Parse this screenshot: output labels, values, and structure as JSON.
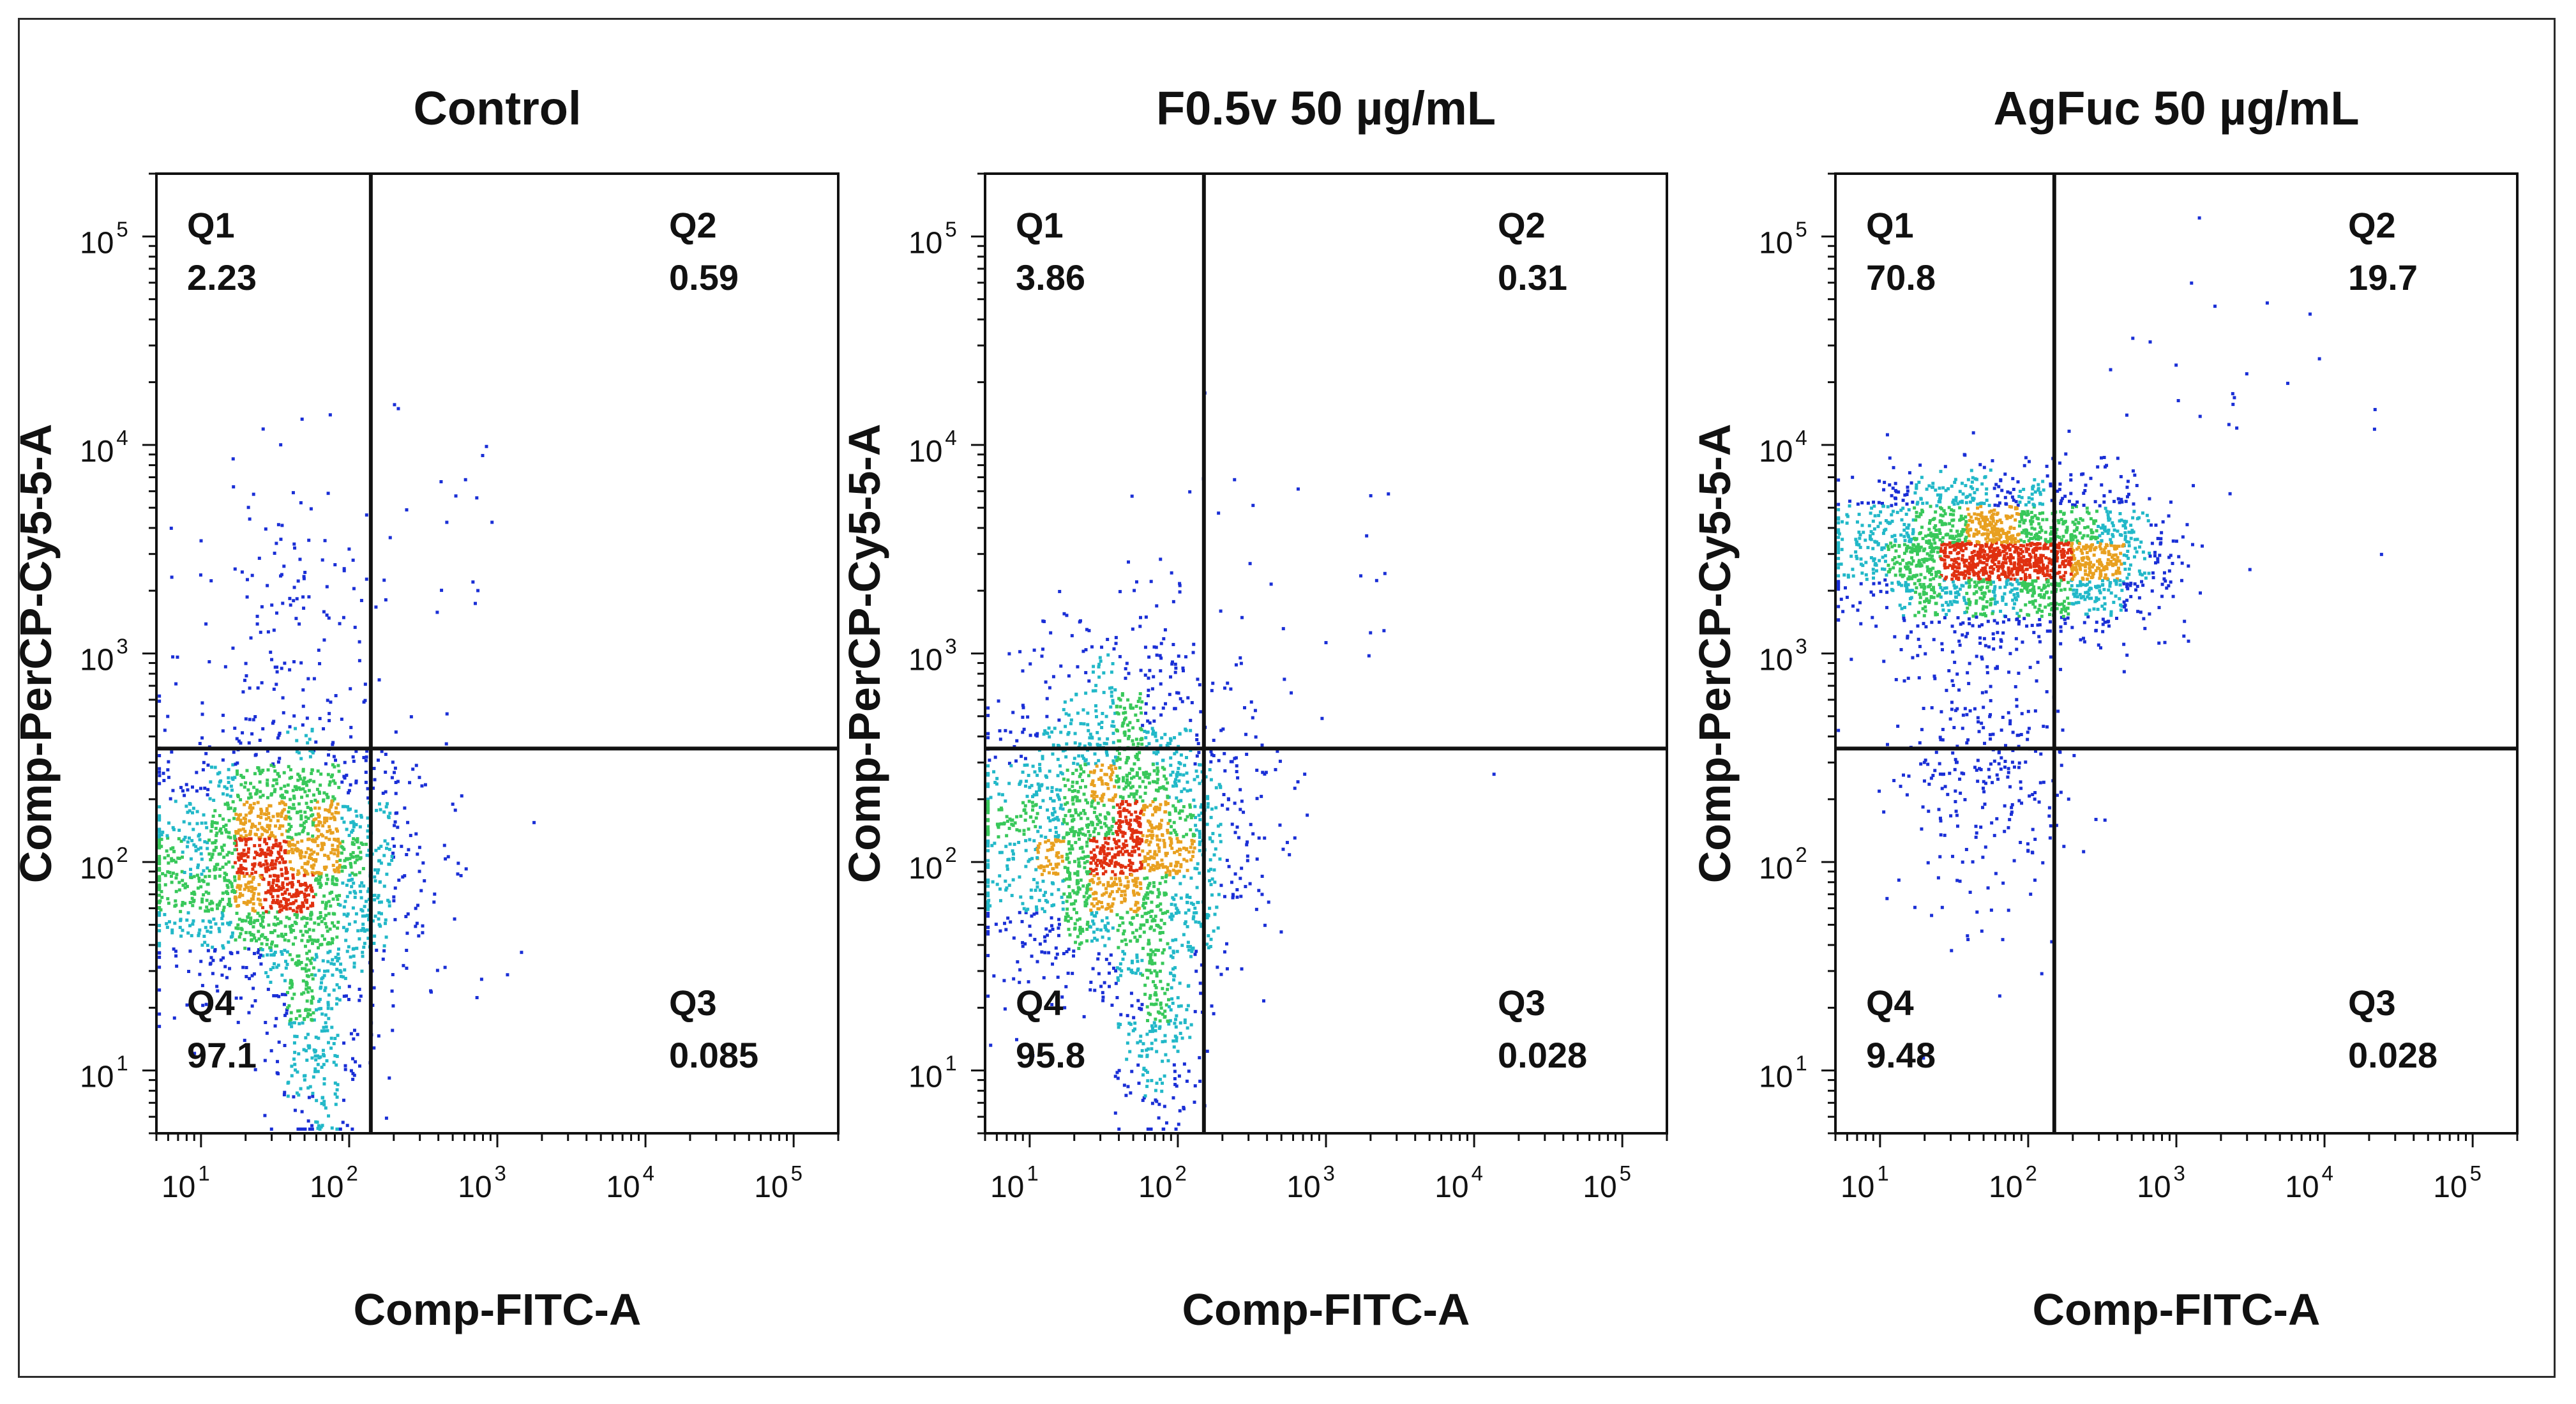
{
  "chart_data": [
    {
      "type": "scatter",
      "title": "Control",
      "xlabel": "Comp-FITC-A",
      "ylabel": "Comp-PerCP-Cy5-5-A",
      "xscale": "log",
      "yscale": "log",
      "xlim": [
        5,
        200000
      ],
      "ylim": [
        5,
        200000
      ],
      "x_ticks": [
        {
          "base": "10",
          "exp": "1"
        },
        {
          "base": "10",
          "exp": "2"
        },
        {
          "base": "10",
          "exp": "3"
        },
        {
          "base": "10",
          "exp": "4"
        },
        {
          "base": "10",
          "exp": "5"
        }
      ],
      "y_ticks": [
        {
          "base": "10",
          "exp": "1"
        },
        {
          "base": "10",
          "exp": "2"
        },
        {
          "base": "10",
          "exp": "3"
        },
        {
          "base": "10",
          "exp": "4"
        },
        {
          "base": "10",
          "exp": "5"
        }
      ],
      "gate": {
        "x": 140,
        "y": 350
      },
      "quadrants": [
        {
          "name": "Q1",
          "value": "2.23",
          "position": "top-left"
        },
        {
          "name": "Q2",
          "value": "0.59",
          "position": "top-right"
        },
        {
          "name": "Q3",
          "value": "0.085",
          "position": "bottom-right"
        },
        {
          "name": "Q4",
          "value": "97.1",
          "position": "bottom-left"
        }
      ],
      "populations": [
        {
          "x_center": 35,
          "y_center": 95,
          "x_spread": 0.45,
          "y_spread": 0.3,
          "count": 1900
        },
        {
          "x_center": 60,
          "y_center": 15,
          "x_spread": 0.15,
          "y_spread": 0.3,
          "count": 250
        },
        {
          "x_center": 40,
          "y_center": 1200,
          "x_spread": 0.35,
          "y_spread": 0.45,
          "count": 150
        },
        {
          "x_center": 400,
          "y_center": 2500,
          "x_spread": 0.35,
          "y_spread": 0.45,
          "count": 22
        }
      ]
    },
    {
      "type": "scatter",
      "title": "F0.5v 50 µg/mL",
      "xlabel": "Comp-FITC-A",
      "ylabel": "Comp-PerCP-Cy5-5-A",
      "xscale": "log",
      "yscale": "log",
      "xlim": [
        5,
        200000
      ],
      "ylim": [
        5,
        200000
      ],
      "x_ticks": [
        {
          "base": "10",
          "exp": "1"
        },
        {
          "base": "10",
          "exp": "2"
        },
        {
          "base": "10",
          "exp": "3"
        },
        {
          "base": "10",
          "exp": "4"
        },
        {
          "base": "10",
          "exp": "5"
        }
      ],
      "y_ticks": [
        {
          "base": "10",
          "exp": "1"
        },
        {
          "base": "10",
          "exp": "2"
        },
        {
          "base": "10",
          "exp": "3"
        },
        {
          "base": "10",
          "exp": "4"
        },
        {
          "base": "10",
          "exp": "5"
        }
      ],
      "gate": {
        "x": 150,
        "y": 350
      },
      "quadrants": [
        {
          "name": "Q1",
          "value": "3.86",
          "position": "top-left"
        },
        {
          "name": "Q2",
          "value": "0.31",
          "position": "top-right"
        },
        {
          "name": "Q3",
          "value": "0.028",
          "position": "bottom-right"
        },
        {
          "name": "Q4",
          "value": "95.8",
          "position": "bottom-left"
        }
      ],
      "populations": [
        {
          "x_center": 35,
          "y_center": 130,
          "x_spread": 0.45,
          "y_spread": 0.33,
          "count": 1900
        },
        {
          "x_center": 70,
          "y_center": 18,
          "x_spread": 0.15,
          "y_spread": 0.3,
          "count": 250
        },
        {
          "x_center": 50,
          "y_center": 700,
          "x_spread": 0.35,
          "y_spread": 0.25,
          "count": 160
        },
        {
          "x_center": 800,
          "y_center": 2500,
          "x_spread": 0.55,
          "y_spread": 0.45,
          "count": 28
        }
      ]
    },
    {
      "type": "scatter",
      "title": "AgFuc 50 µg/mL",
      "xlabel": "Comp-FITC-A",
      "ylabel": "Comp-PerCP-Cy5-5-A",
      "xscale": "log",
      "yscale": "log",
      "xlim": [
        5,
        200000
      ],
      "ylim": [
        5,
        200000
      ],
      "x_ticks": [
        {
          "base": "10",
          "exp": "1"
        },
        {
          "base": "10",
          "exp": "2"
        },
        {
          "base": "10",
          "exp": "3"
        },
        {
          "base": "10",
          "exp": "4"
        },
        {
          "base": "10",
          "exp": "5"
        }
      ],
      "y_ticks": [
        {
          "base": "10",
          "exp": "1"
        },
        {
          "base": "10",
          "exp": "2"
        },
        {
          "base": "10",
          "exp": "3"
        },
        {
          "base": "10",
          "exp": "4"
        },
        {
          "base": "10",
          "exp": "5"
        }
      ],
      "gate": {
        "x": 150,
        "y": 350
      },
      "quadrants": [
        {
          "name": "Q1",
          "value": "70.8",
          "position": "top-left"
        },
        {
          "name": "Q2",
          "value": "19.7",
          "position": "top-right"
        },
        {
          "name": "Q3",
          "value": "0.028",
          "position": "bottom-right"
        },
        {
          "name": "Q4",
          "value": "9.48",
          "position": "bottom-left"
        }
      ],
      "populations": [
        {
          "x_center": 45,
          "y_center": 3000,
          "x_spread": 0.45,
          "y_spread": 0.18,
          "count": 1700
        },
        {
          "x_center": 250,
          "y_center": 2800,
          "x_spread": 0.3,
          "y_spread": 0.18,
          "count": 600
        },
        {
          "x_center": 50,
          "y_center": 300,
          "x_spread": 0.3,
          "y_spread": 0.4,
          "count": 300
        },
        {
          "x_center": 2000,
          "y_center": 20000,
          "x_spread": 0.5,
          "y_spread": 0.3,
          "count": 25
        }
      ]
    }
  ],
  "colors": {
    "background": "#ffffff",
    "ink": "#111111",
    "sparse_dot": "#1a2fd6",
    "mid_dot": "#22b8c8",
    "dense_dot": "#38c85a",
    "hot_dot": "#e8a020",
    "peak_dot": "#e03010"
  }
}
